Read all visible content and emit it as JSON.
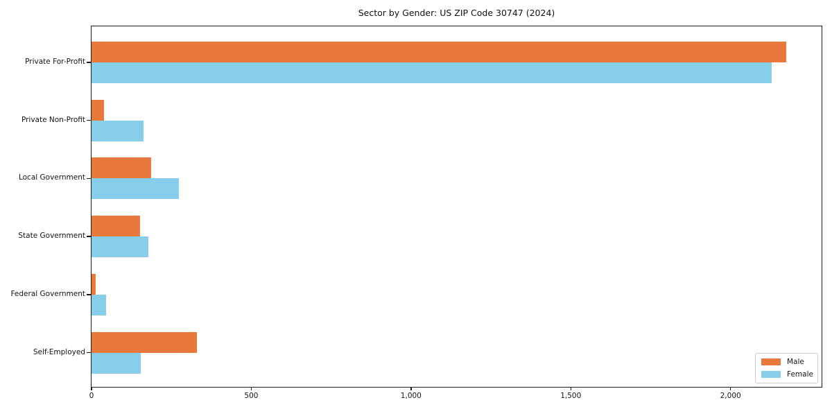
{
  "chart_data": {
    "type": "bar",
    "orientation": "horizontal",
    "title": "Sector by Gender: US ZIP Code 30747 (2024)",
    "categories": [
      "Private For-Profit",
      "Private Non-Profit",
      "Local Government",
      "State Government",
      "Federal Government",
      "Self-Employed"
    ],
    "series": [
      {
        "name": "Male",
        "color": "#e8783c",
        "values": [
          2174,
          38,
          187,
          152,
          14,
          330
        ]
      },
      {
        "name": "Female",
        "color": "#87ceeb",
        "values": [
          2129,
          163,
          274,
          177,
          45,
          154
        ]
      }
    ],
    "xlim": [
      0,
      2285
    ],
    "xticks": [
      0,
      500,
      1000,
      1500,
      2000
    ],
    "xtick_labels": [
      "0",
      "500",
      "1,000",
      "1,500",
      "2,000"
    ],
    "xlabel": "",
    "ylabel": "",
    "grid": false,
    "legend_position": "lower right"
  }
}
